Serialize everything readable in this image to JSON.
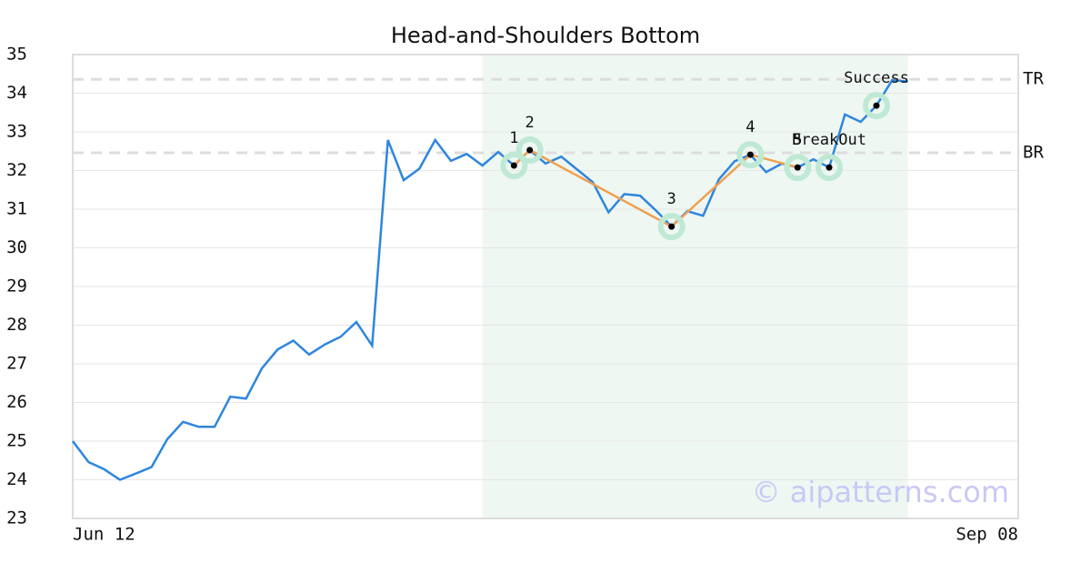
{
  "chart_data": {
    "type": "line",
    "title": "Head-and-Shoulders Bottom",
    "x": [
      0,
      1,
      2,
      3,
      4,
      5,
      6,
      7,
      8,
      9,
      10,
      11,
      12,
      13,
      14,
      15,
      16,
      17,
      18,
      19,
      20,
      21,
      22,
      23,
      24,
      25,
      26,
      27,
      28,
      29,
      30,
      31,
      32,
      33,
      34,
      35,
      36,
      37,
      38,
      39,
      40,
      41,
      42,
      43,
      44,
      45,
      46,
      47,
      48,
      49,
      50,
      51,
      52,
      53
    ],
    "series": [
      {
        "color": "#2e86de",
        "values": [
          25.0,
          24.46,
          24.27,
          24.0,
          24.16,
          24.33,
          25.05,
          25.5,
          25.37,
          25.37,
          26.15,
          26.1,
          26.88,
          27.37,
          27.6,
          27.24,
          27.5,
          27.7,
          28.08,
          27.47,
          32.79,
          31.75,
          32.05,
          32.79,
          32.25,
          32.43,
          32.13,
          32.48,
          32.13,
          32.53,
          32.18,
          32.36,
          32.03,
          31.7,
          30.92,
          31.39,
          31.35,
          30.97,
          30.55,
          30.95,
          30.83,
          31.77,
          32.24,
          32.41,
          31.96,
          32.18,
          32.08,
          32.29,
          32.08,
          33.45,
          33.26,
          33.68,
          34.34,
          34.3
        ]
      }
    ],
    "xlim": [
      0,
      60
    ],
    "xticks": [
      {
        "value": 0,
        "label": "Jun 12"
      },
      {
        "value": 60,
        "label": "Sep 08"
      }
    ],
    "ylim": [
      23,
      35
    ],
    "yticks": [
      23,
      24,
      25,
      26,
      27,
      28,
      29,
      30,
      31,
      32,
      33,
      34,
      35
    ],
    "grid": true,
    "highlight_range": [
      26,
      53
    ],
    "highlight_color": "#eef7f2",
    "pattern": {
      "color": "#f0a050",
      "points": [
        {
          "label": "1",
          "x": 28,
          "y": 32.13
        },
        {
          "label": "2",
          "x": 29,
          "y": 32.53
        },
        {
          "label": "3",
          "x": 38,
          "y": 30.55
        },
        {
          "label": "4",
          "x": 43,
          "y": 32.41
        },
        {
          "label": "5",
          "x": 46,
          "y": 32.08
        }
      ]
    },
    "signals": [
      {
        "label": "BreakOut",
        "x": 48,
        "y": 32.08
      },
      {
        "label": "Success",
        "x": 51,
        "y": 33.68
      }
    ],
    "levels": [
      {
        "label": "TR",
        "value": 34.36
      },
      {
        "label": "BR",
        "value": 32.46
      }
    ],
    "watermark": "© aipatterns.com"
  }
}
